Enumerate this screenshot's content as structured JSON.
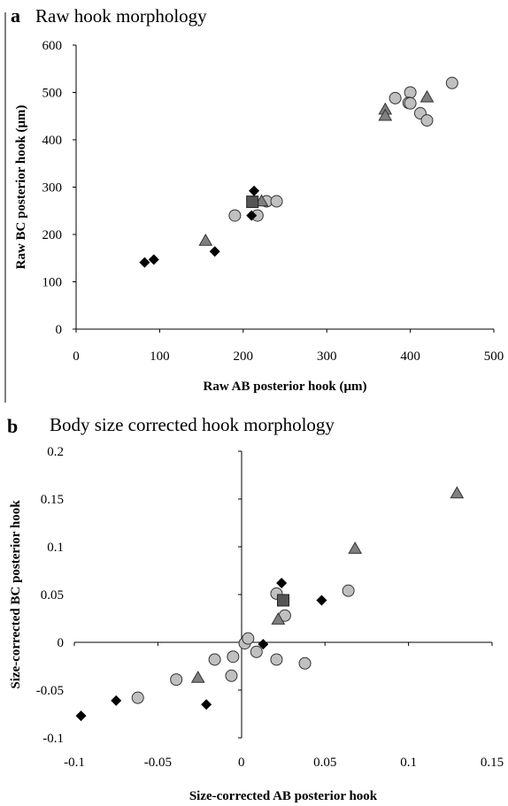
{
  "chart_data": [
    {
      "type": "scatter",
      "panel": "a",
      "title": "Raw hook morphology",
      "xlabel": "Raw AB posterior hook (μm)",
      "ylabel": "Raw BC posterior hook (μm)",
      "xlim": [
        0,
        500
      ],
      "ylim": [
        0,
        600
      ],
      "xticks": [
        "0",
        "100",
        "200",
        "300",
        "400",
        "500"
      ],
      "yticks": [
        "0",
        "100",
        "200",
        "300",
        "400",
        "500",
        "600"
      ],
      "grid": false,
      "series": [
        {
          "marker": "circle",
          "color": "#c0c0c0",
          "points": [
            [
              190,
              240
            ],
            [
              217,
              240
            ],
            [
              228,
              270
            ],
            [
              240,
              270
            ],
            [
              382,
              488
            ],
            [
              400,
              500
            ],
            [
              398,
              478
            ],
            [
              400,
              477
            ],
            [
              412,
              456
            ],
            [
              420,
              441
            ],
            [
              450,
              520
            ]
          ]
        },
        {
          "marker": "diamond",
          "color": "#000000",
          "points": [
            [
              82,
              141
            ],
            [
              93,
              147
            ],
            [
              166,
              164
            ],
            [
              210,
              240
            ],
            [
              213,
              292
            ]
          ]
        },
        {
          "marker": "triangle",
          "color": "#808080",
          "points": [
            [
              155,
              187
            ],
            [
              222,
              270
            ],
            [
              370,
              464
            ],
            [
              370,
              451
            ],
            [
              420,
              490
            ]
          ]
        },
        {
          "marker": "square",
          "color": "#555555",
          "points": [
            [
              211,
              269
            ]
          ]
        }
      ]
    },
    {
      "type": "scatter",
      "panel": "b",
      "title": "Body size corrected hook morphology",
      "xlabel": "Size-corrected AB posterior hook",
      "ylabel": "Size-corrected BC posterior hook",
      "xlim": [
        -0.1,
        0.15
      ],
      "ylim": [
        -0.1,
        0.2
      ],
      "xticks": [
        "-0.1",
        "-0.05",
        "0",
        "0.05",
        "0.1",
        "0.15"
      ],
      "yticks": [
        "-0.1",
        "-0.05",
        "0",
        "0.05",
        "0.1",
        "0.15",
        "0.2"
      ],
      "grid": false,
      "series": [
        {
          "marker": "circle",
          "color": "#c0c0c0",
          "points": [
            [
              -0.062,
              -0.058
            ],
            [
              -0.039,
              -0.039
            ],
            [
              -0.016,
              -0.018
            ],
            [
              -0.005,
              -0.015
            ],
            [
              -0.006,
              -0.035
            ],
            [
              0.002,
              -0.001
            ],
            [
              0.004,
              0.004
            ],
            [
              0.009,
              -0.01
            ],
            [
              0.021,
              -0.018
            ],
            [
              0.021,
              0.051
            ],
            [
              0.026,
              0.028
            ],
            [
              0.038,
              -0.022
            ],
            [
              0.064,
              0.054
            ]
          ]
        },
        {
          "marker": "diamond",
          "color": "#000000",
          "points": [
            [
              -0.096,
              -0.077
            ],
            [
              -0.075,
              -0.061
            ],
            [
              -0.021,
              -0.065
            ],
            [
              0.013,
              -0.002
            ],
            [
              0.024,
              0.062
            ],
            [
              0.048,
              0.044
            ]
          ]
        },
        {
          "marker": "triangle",
          "color": "#808080",
          "points": [
            [
              -0.026,
              -0.037
            ],
            [
              0.022,
              0.024
            ],
            [
              0.068,
              0.098
            ],
            [
              0.129,
              0.156
            ]
          ]
        },
        {
          "marker": "square",
          "color": "#555555",
          "points": [
            [
              0.025,
              0.044
            ]
          ]
        }
      ]
    }
  ]
}
